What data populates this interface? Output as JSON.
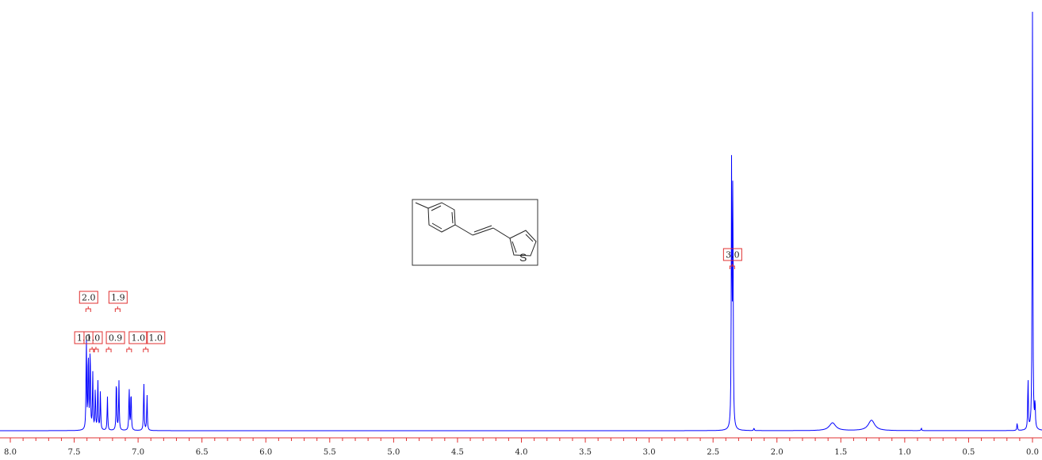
{
  "chart_data": {
    "type": "line",
    "title": "",
    "xlabel": "",
    "ylabel": "",
    "xlim": [
      8.0,
      0.0
    ],
    "x_reversed": true,
    "grid": false,
    "tick_labels": [
      "8.0",
      "7.5",
      "7.0",
      "6.5",
      "6.0",
      "5.5",
      "5.0",
      "4.5",
      "4.0",
      "3.5",
      "3.0",
      "2.5",
      "2.0",
      "1.5",
      "1.0",
      "0.5",
      "0.0"
    ],
    "series": [
      {
        "color": "#0000ff",
        "peaks": [
          {
            "ppm": 7.405,
            "height": 0.36
          },
          {
            "ppm": 7.39,
            "height": 0.31
          },
          {
            "ppm": 7.375,
            "height": 0.33
          },
          {
            "ppm": 7.355,
            "height": 0.22
          },
          {
            "ppm": 7.335,
            "height": 0.16
          },
          {
            "ppm": 7.315,
            "height": 0.2
          },
          {
            "ppm": 7.295,
            "height": 0.15
          },
          {
            "ppm": 7.24,
            "height": 0.13
          },
          {
            "ppm": 7.17,
            "height": 0.21
          },
          {
            "ppm": 7.15,
            "height": 0.19
          },
          {
            "ppm": 7.07,
            "height": 0.17
          },
          {
            "ppm": 7.055,
            "height": 0.16
          },
          {
            "ppm": 6.955,
            "height": 0.19
          },
          {
            "ppm": 6.93,
            "height": 0.14
          },
          {
            "ppm": 2.355,
            "height": 1.0
          },
          {
            "ppm": 2.345,
            "height": 0.98
          },
          {
            "ppm": 2.18,
            "height": 0.01
          },
          {
            "ppm": 1.565,
            "height": 0.03
          },
          {
            "ppm": 1.26,
            "height": 0.04
          },
          {
            "ppm": 0.87,
            "height": 0.01
          },
          {
            "ppm": 0.12,
            "height": 0.03
          },
          {
            "ppm": 0.035,
            "height": 0.2
          },
          {
            "ppm": 0.0,
            "height": 1.6
          },
          {
            "ppm": -0.02,
            "height": 0.1
          }
        ]
      }
    ],
    "integrals": [
      {
        "label": "2.0",
        "ppm": 7.39,
        "level": "top"
      },
      {
        "label": "1.9",
        "ppm": 7.16,
        "level": "top"
      },
      {
        "label": "1.0",
        "ppm": 7.36,
        "level": "bottom"
      },
      {
        "label": "1.0",
        "ppm": 7.33,
        "level": "bottom"
      },
      {
        "label": "0.9",
        "ppm": 7.23,
        "level": "bottom"
      },
      {
        "label": "1.0",
        "ppm": 7.07,
        "level": "bottom"
      },
      {
        "label": "1.0",
        "ppm": 6.94,
        "level": "bottom"
      },
      {
        "label": "3.0",
        "ppm": 2.35,
        "level": "middle"
      }
    ],
    "structure_label": "S"
  }
}
